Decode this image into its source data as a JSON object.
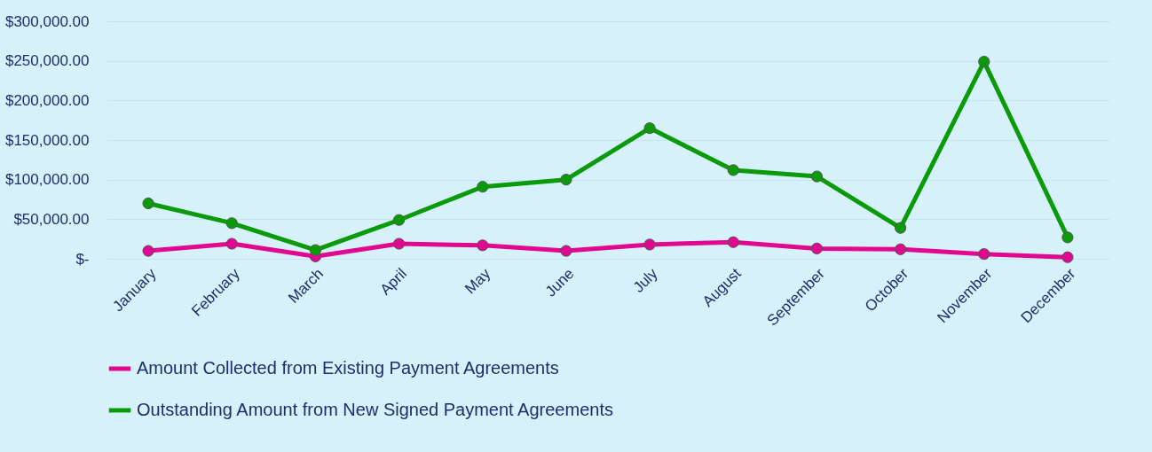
{
  "chart_data": {
    "type": "line",
    "categories": [
      "January",
      "February",
      "March",
      "April",
      "May",
      "June",
      "July",
      "August",
      "September",
      "October",
      "November",
      "December"
    ],
    "series": [
      {
        "name": "Amount Collected from Existing Payment Agreements",
        "color": "#e0088f",
        "values": [
          10000,
          19000,
          3000,
          19000,
          17000,
          10000,
          18000,
          21000,
          13000,
          12000,
          6000,
          2000
        ]
      },
      {
        "name": "Outstanding  Amount from New Signed Payment Agreements",
        "color": "#0a9a0a",
        "values": [
          70000,
          45000,
          11000,
          49000,
          91000,
          100000,
          165000,
          112000,
          104000,
          39000,
          249000,
          27000
        ]
      }
    ],
    "ylim": [
      0,
      300000
    ],
    "yticks": [
      {
        "value": 0,
        "label": "$-"
      },
      {
        "value": 50000,
        "label": "$50,000.00"
      },
      {
        "value": 100000,
        "label": "$100,000.00"
      },
      {
        "value": 150000,
        "label": "$150,000.00"
      },
      {
        "value": 200000,
        "label": "$200,000.00"
      },
      {
        "value": 250000,
        "label": "$250,000.00"
      },
      {
        "value": 300000,
        "label": "$300,000.00"
      }
    ],
    "grid": "y",
    "legend": "bottom",
    "marker": "circle",
    "line_style": "solid"
  }
}
